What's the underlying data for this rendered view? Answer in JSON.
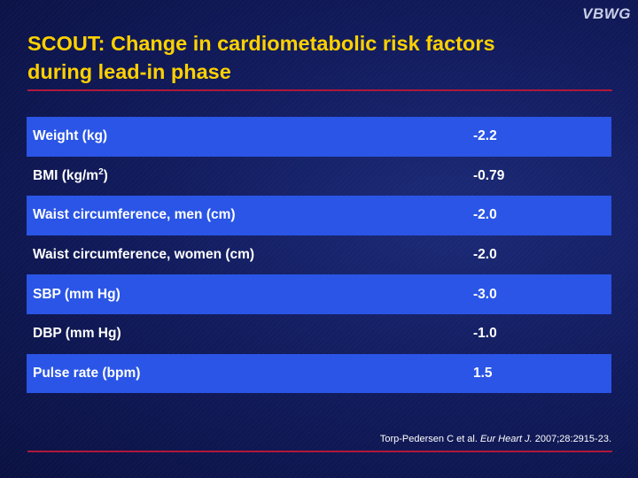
{
  "brand": {
    "logo_text": "VBWG"
  },
  "header": {
    "title_line1": "SCOUT: Change in cardiometabolic risk factors",
    "title_line2": "during lead-in phase"
  },
  "table": {
    "rows": [
      {
        "label": "Weight (kg)",
        "value": "-2.2"
      },
      {
        "label_pre": "BMI (kg/m",
        "label_sup": "2",
        "label_post": ")",
        "value": "-0.79"
      },
      {
        "label": "Waist circumference, men (cm)",
        "value": "-2.0"
      },
      {
        "label": "Waist circumference, women (cm)",
        "value": "-2.0"
      },
      {
        "label": "SBP (mm Hg)",
        "value": "-3.0"
      },
      {
        "label": "DBP (mm Hg)",
        "value": "-1.0"
      },
      {
        "label": "Pulse rate (bpm)",
        "value": "1.5"
      }
    ]
  },
  "footnote": {
    "authors": "Torp-Pedersen C et al.",
    "journal": "Eur Heart J.",
    "details": "2007;28:2915-23."
  },
  "colors": {
    "title": "#ffd100",
    "row_shade": "#2a55e6",
    "rule": "#b0183a",
    "background": "#121c5e"
  }
}
